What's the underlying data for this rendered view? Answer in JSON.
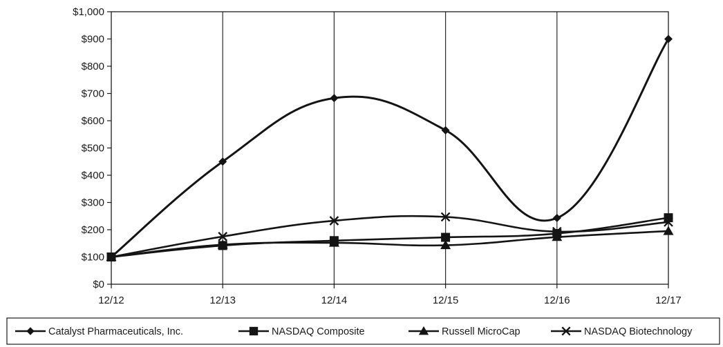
{
  "chart_data": {
    "type": "line",
    "title": "",
    "xlabel": "",
    "ylabel": "",
    "categories": [
      "12/12",
      "12/13",
      "12/14",
      "12/15",
      "12/16",
      "12/17"
    ],
    "y_ticks": [
      "$0",
      "$100",
      "$200",
      "$300",
      "$400",
      "$500",
      "$600",
      "$700",
      "$800",
      "$900",
      "$1,000"
    ],
    "ylim": [
      0,
      1000
    ],
    "grid": "vertical",
    "legend_position": "bottom",
    "series": [
      {
        "name": "Catalyst Pharmaceuticals, Inc.",
        "marker": "diamond",
        "values": [
          100,
          450,
          683,
          565,
          243,
          900
        ]
      },
      {
        "name": "NASDAQ Composite",
        "marker": "square",
        "values": [
          100,
          142,
          160,
          172,
          186,
          244
        ]
      },
      {
        "name": "Russell MicroCap",
        "marker": "triangle",
        "values": [
          100,
          145,
          152,
          143,
          173,
          195
        ]
      },
      {
        "name": "NASDAQ Biotechnology",
        "marker": "x",
        "values": [
          100,
          175,
          233,
          247,
          193,
          228
        ]
      }
    ],
    "colors": {
      "series": "#141414",
      "grid": "#2a2a2a",
      "axis": "#1a1a1a"
    }
  }
}
